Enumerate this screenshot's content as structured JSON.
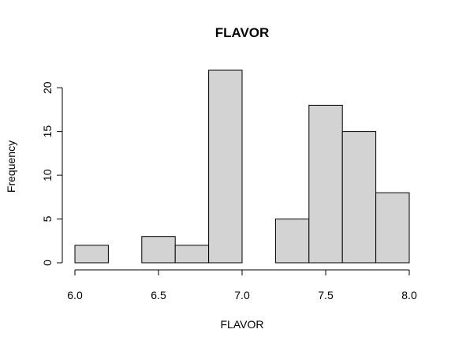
{
  "chart_data": {
    "type": "bar",
    "subtype": "histogram",
    "title": "FLAVOR",
    "xlabel": "FLAVOR",
    "ylabel": "Frequency",
    "bins": [
      {
        "start": 6.0,
        "end": 6.2,
        "count": 2
      },
      {
        "start": 6.2,
        "end": 6.4,
        "count": 0
      },
      {
        "start": 6.4,
        "end": 6.6,
        "count": 3
      },
      {
        "start": 6.6,
        "end": 6.8,
        "count": 2
      },
      {
        "start": 6.8,
        "end": 7.0,
        "count": 22
      },
      {
        "start": 7.0,
        "end": 7.2,
        "count": 0
      },
      {
        "start": 7.2,
        "end": 7.4,
        "count": 5
      },
      {
        "start": 7.4,
        "end": 7.6,
        "count": 18
      },
      {
        "start": 7.6,
        "end": 7.8,
        "count": 15
      },
      {
        "start": 7.8,
        "end": 8.0,
        "count": 8
      }
    ],
    "xlim": [
      6.0,
      8.0
    ],
    "ylim": [
      0,
      22
    ],
    "x_ticks": [
      {
        "value": 6.0,
        "label": "6.0"
      },
      {
        "value": 6.5,
        "label": "6.5"
      },
      {
        "value": 7.0,
        "label": "7.0"
      },
      {
        "value": 7.5,
        "label": "7.5"
      },
      {
        "value": 8.0,
        "label": "8.0"
      }
    ],
    "y_ticks": [
      {
        "value": 0,
        "label": "0"
      },
      {
        "value": 5,
        "label": "5"
      },
      {
        "value": 10,
        "label": "10"
      },
      {
        "value": 15,
        "label": "15"
      },
      {
        "value": 20,
        "label": "20"
      }
    ],
    "bar_fill": "#d3d3d3",
    "bar_edge": "#000000",
    "grid": false,
    "legend": "none"
  }
}
